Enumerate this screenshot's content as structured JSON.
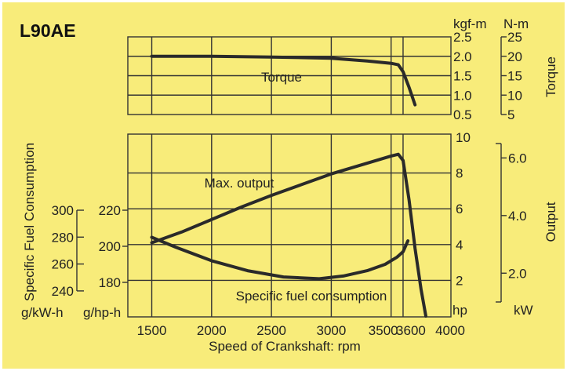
{
  "chart_data": {
    "type": "line",
    "title": "L90AE",
    "xlabel": "Speed of Crankshaft: rpm",
    "x_ticks": [
      1500,
      2000,
      2500,
      3000,
      3500,
      3600,
      4000
    ],
    "xlim": [
      1300,
      4000
    ],
    "torque": {
      "label": "Torque",
      "unit_left": "kgf-m",
      "unit_right": "N-m",
      "ylim": [
        0.5,
        2.5
      ],
      "ticks_kgfm": [
        "2.5",
        "2.0",
        "1.5",
        "1.0",
        "0.5"
      ],
      "ticks_nm": [
        "25",
        "20",
        "15",
        "10",
        "5"
      ],
      "series": [
        {
          "name": "Torque",
          "x": [
            1500,
            2000,
            2500,
            3000,
            3300,
            3500,
            3560,
            3600,
            3650,
            3700
          ],
          "y": [
            2.0,
            2.0,
            1.98,
            1.95,
            1.88,
            1.82,
            1.78,
            1.6,
            1.2,
            0.75
          ]
        }
      ]
    },
    "lower": {
      "hp_ticks": [
        "10",
        "8",
        "6",
        "4",
        "2"
      ],
      "hp_unit": "hp",
      "hp_ylim": [
        0,
        10
      ],
      "kw_ticks": [
        "6.0",
        "4.0",
        "2.0"
      ],
      "kw_unit": "kW",
      "gkwh_ticks": [
        "300",
        "280",
        "260",
        "240"
      ],
      "gkwh_unit": "g/kW-h",
      "ghph_ticks": [
        "220",
        "200",
        "180"
      ],
      "ghph_unit": "g/hp-h",
      "ghph_ylim": [
        160,
        240
      ],
      "output_label": "Output",
      "sfc_axis_label": "Specific Fuel Consumption",
      "series": [
        {
          "name": "Max. output",
          "x": [
            1500,
            1750,
            2000,
            2250,
            2500,
            2750,
            3000,
            3250,
            3500,
            3560,
            3600,
            3650,
            3700,
            3750,
            3790
          ],
          "y": [
            4.1,
            4.7,
            5.4,
            6.1,
            6.75,
            7.35,
            7.95,
            8.45,
            8.95,
            9.05,
            8.7,
            6.5,
            3.8,
            1.5,
            0
          ]
        },
        {
          "name": "Specific fuel consumption",
          "x": [
            1500,
            1700,
            2000,
            2300,
            2600,
            2900,
            3100,
            3300,
            3450,
            3550,
            3600,
            3640
          ],
          "y": [
            205,
            199.5,
            192,
            186.5,
            183,
            182,
            183.5,
            186.5,
            190,
            194,
            197,
            203
          ]
        }
      ]
    }
  }
}
